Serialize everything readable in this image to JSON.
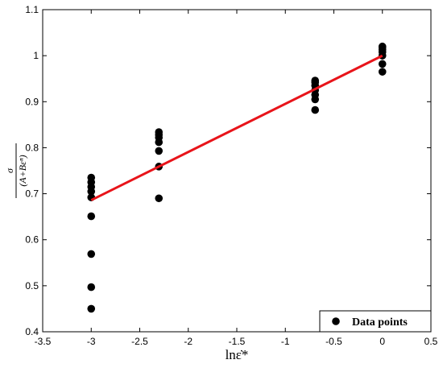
{
  "chart_data": {
    "type": "scatter",
    "x_label": "lnε̇*",
    "y_label": {
      "numerator": "σ",
      "denominator": "(A+Bεⁿ)"
    },
    "series": [
      {
        "name": "Data points",
        "color": "#000000",
        "x": [
          -3,
          -3,
          -3,
          -3,
          -3,
          -3,
          -3,
          -3,
          -3,
          -2.303,
          -2.303,
          -2.303,
          -2.303,
          -2.303,
          -2.303,
          -2.303,
          -0.693,
          -0.693,
          -0.693,
          -0.693,
          -0.693,
          -0.693,
          -0.693,
          0,
          0,
          0,
          0,
          0,
          0,
          0
        ],
        "values": [
          0.45,
          0.497,
          0.569,
          0.651,
          0.692,
          0.705,
          0.715,
          0.725,
          0.735,
          0.69,
          0.759,
          0.793,
          0.812,
          0.822,
          0.828,
          0.834,
          0.882,
          0.905,
          0.915,
          0.925,
          0.935,
          0.942,
          0.946,
          0.965,
          0.982,
          1.0,
          1.008,
          1.013,
          1.018,
          1.02
        ]
      }
    ],
    "fit_line": {
      "color": "#e8141a",
      "x": [
        -3,
        0
      ],
      "values": [
        0.686,
        1.0
      ]
    },
    "xlim": [
      -3.5,
      0.5
    ],
    "xticks": [
      -3.5,
      -3,
      -2.5,
      -2,
      -1.5,
      -1,
      -0.5,
      0,
      0.5
    ],
    "ylim": [
      0.4,
      1.1
    ],
    "yticks": [
      0.4,
      0.5,
      0.6,
      0.7,
      0.8,
      0.9,
      1,
      1.1
    ],
    "grid": false,
    "legend": "lower right"
  }
}
